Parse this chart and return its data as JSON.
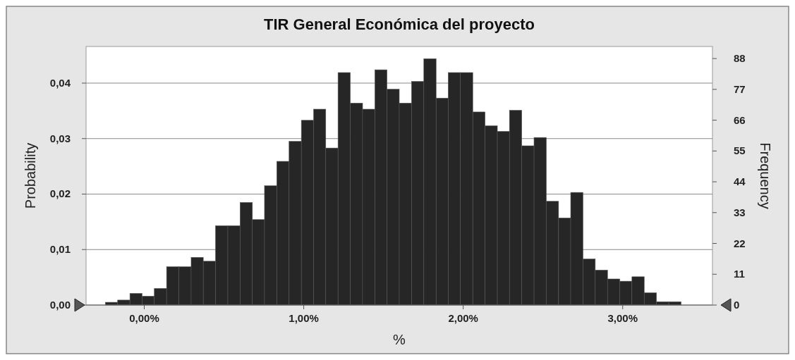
{
  "chart_data": {
    "type": "histogram",
    "title": "TIR General Económica del proyecto",
    "xlabel": "%",
    "ylabel": "Probability",
    "y2label": "Frequency",
    "bins": [
      -0.244,
      -0.167,
      -0.09,
      -0.014,
      0.063,
      0.14,
      0.217,
      0.294,
      0.37,
      0.447,
      0.524,
      0.601,
      0.678,
      0.754,
      0.831,
      0.908,
      0.985,
      1.062,
      1.138,
      1.215,
      1.292,
      1.369,
      1.446,
      1.522,
      1.599,
      1.676,
      1.753,
      1.83,
      1.906,
      1.983,
      2.06,
      2.137,
      2.214,
      2.29,
      2.367,
      2.444,
      2.521,
      2.598,
      2.674,
      2.751,
      2.828,
      2.905,
      2.982,
      3.058,
      3.135,
      3.212,
      3.289,
      3.366
    ],
    "values": [
      0.0005,
      0.0009,
      0.0021,
      0.0016,
      0.003,
      0.0069,
      0.0069,
      0.0086,
      0.0079,
      0.0143,
      0.0143,
      0.0185,
      0.0154,
      0.0215,
      0.0259,
      0.0295,
      0.0333,
      0.0353,
      0.0283,
      0.0419,
      0.0364,
      0.0353,
      0.0424,
      0.0389,
      0.0364,
      0.0403,
      0.0444,
      0.0373,
      0.0419,
      0.0419,
      0.0348,
      0.0323,
      0.0313,
      0.0351,
      0.0287,
      0.0302,
      0.0187,
      0.0157,
      0.0203,
      0.0083,
      0.0063,
      0.0047,
      0.0043,
      0.0051,
      0.0022,
      0.0006,
      0.0006
    ],
    "color": "#262626",
    "xlim": [
      -0.365,
      3.563
    ],
    "xticks": [
      {
        "value": 0,
        "label": "0,00%"
      },
      {
        "value": 1,
        "label": "1,00%"
      },
      {
        "value": 2,
        "label": "2,00%"
      },
      {
        "value": 3,
        "label": "3,00%"
      }
    ],
    "ylim": [
      0,
      0.0466
    ],
    "yticks": [
      {
        "value": 0,
        "label": "0,00"
      },
      {
        "value": 0.01,
        "label": "0,01"
      },
      {
        "value": 0.02,
        "label": "0,02"
      },
      {
        "value": 0.03,
        "label": "0,03"
      },
      {
        "value": 0.04,
        "label": "0,04"
      }
    ],
    "y2lim": [
      0,
      92.3
    ],
    "y2ticks": [
      0,
      11,
      22,
      33,
      44,
      55,
      66,
      77,
      88
    ],
    "grid": "y"
  }
}
